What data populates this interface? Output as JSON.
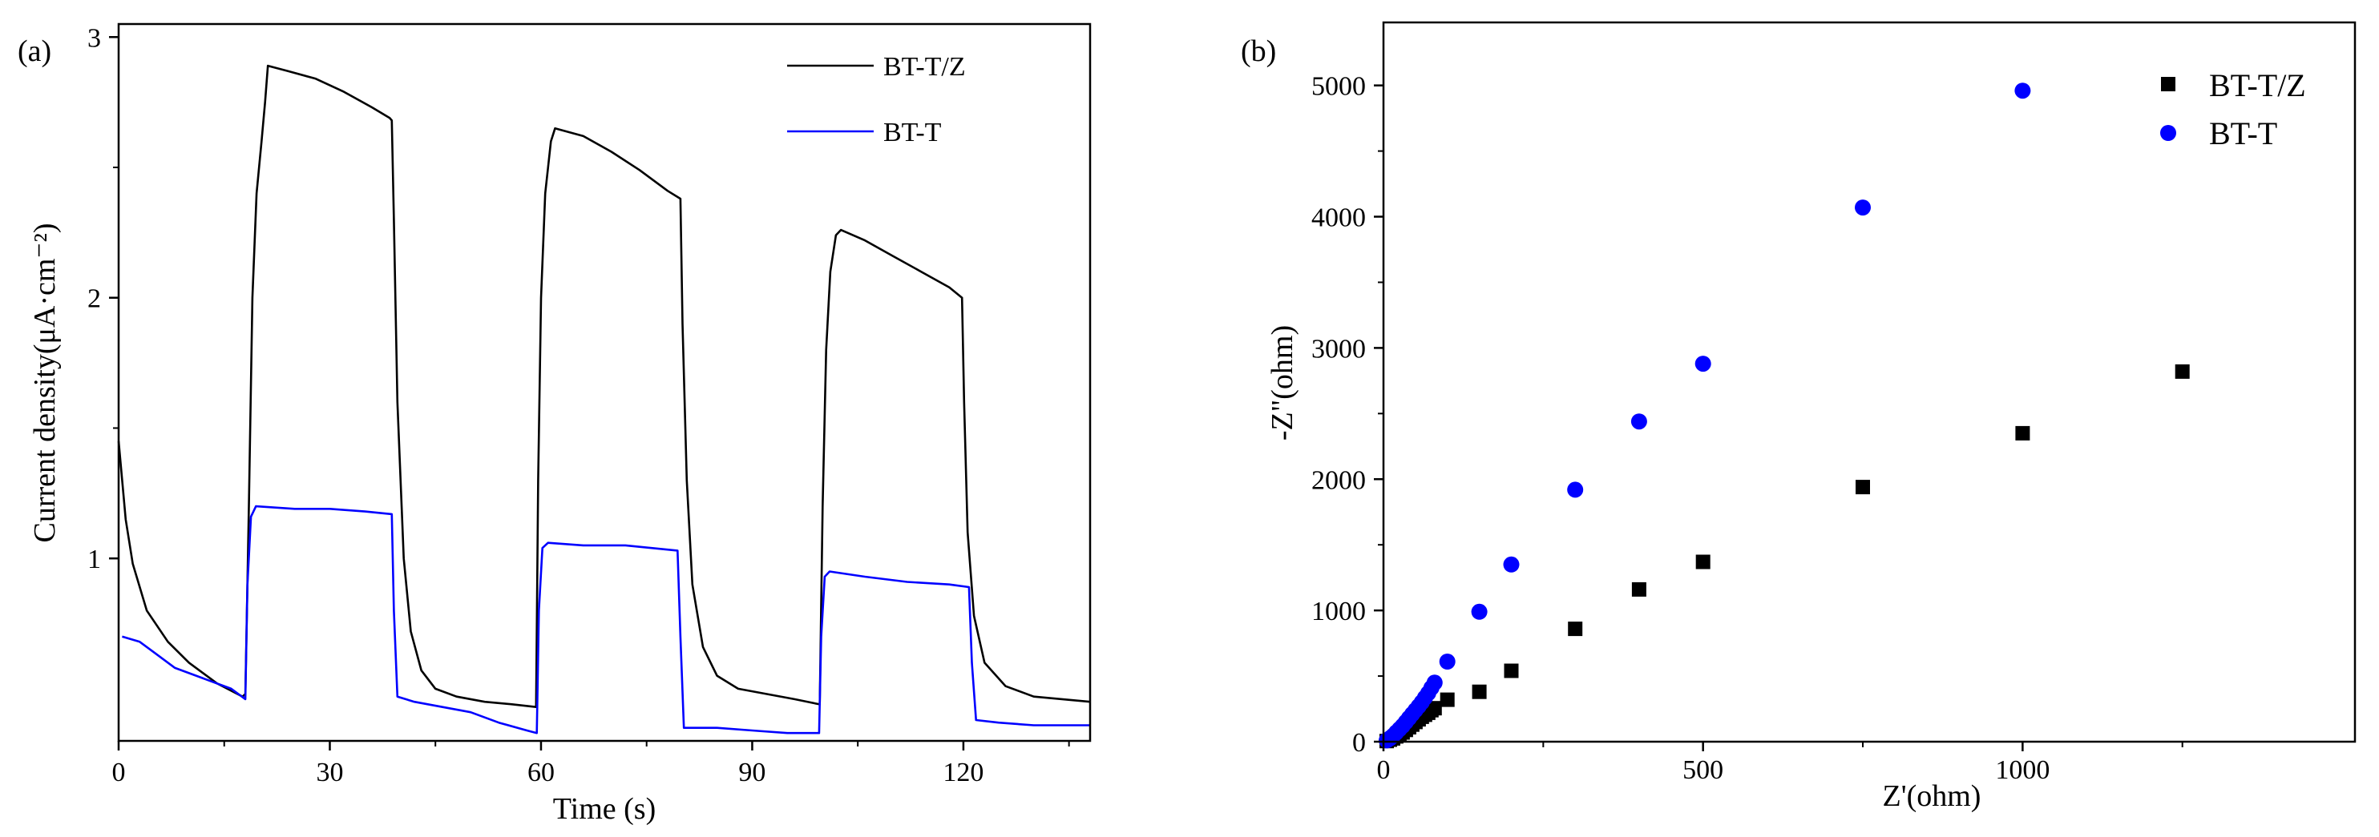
{
  "chart_data": [
    {
      "type": "line",
      "panel_label": "(a)",
      "title": "",
      "xlabel": "Time (s)",
      "ylabel": "Current density(μA·cm⁻²)",
      "xlim": [
        0,
        138
      ],
      "ylim": [
        0.3,
        3.05
      ],
      "xticks": [
        "0",
        "30",
        "60",
        "90",
        "120"
      ],
      "yticks": [
        "1",
        "2",
        "3"
      ],
      "x_tick_values": [
        0,
        30,
        60,
        90,
        120
      ],
      "y_tick_values": [
        1,
        2,
        3
      ],
      "grid": false,
      "legend_position": "top-right",
      "series": [
        {
          "name": "BT-T/Z",
          "color": "#000000",
          "points": [
            [
              0,
              1.45
            ],
            [
              1,
              1.15
            ],
            [
              2,
              0.98
            ],
            [
              4,
              0.8
            ],
            [
              7,
              0.68
            ],
            [
              10,
              0.6
            ],
            [
              14,
              0.52
            ],
            [
              17.6,
              0.47
            ],
            [
              18,
              0.48
            ],
            [
              18.5,
              1.2
            ],
            [
              19,
              2.0
            ],
            [
              19.6,
              2.4
            ],
            [
              20.3,
              2.6
            ],
            [
              20.8,
              2.75
            ],
            [
              21.2,
              2.89
            ],
            [
              24,
              2.87
            ],
            [
              28,
              2.84
            ],
            [
              32,
              2.79
            ],
            [
              36,
              2.73
            ],
            [
              38.5,
              2.69
            ],
            [
              38.8,
              2.68
            ],
            [
              39.1,
              2.3
            ],
            [
              39.6,
              1.6
            ],
            [
              40.5,
              1.0
            ],
            [
              41.5,
              0.72
            ],
            [
              43,
              0.57
            ],
            [
              45,
              0.5
            ],
            [
              48,
              0.47
            ],
            [
              52,
              0.45
            ],
            [
              56,
              0.44
            ],
            [
              59.3,
              0.43
            ],
            [
              59.6,
              1.3
            ],
            [
              60,
              2.0
            ],
            [
              60.6,
              2.4
            ],
            [
              61.4,
              2.6
            ],
            [
              62,
              2.65
            ],
            [
              66,
              2.62
            ],
            [
              70,
              2.56
            ],
            [
              74,
              2.49
            ],
            [
              78,
              2.41
            ],
            [
              79.8,
              2.38
            ],
            [
              80.1,
              1.9
            ],
            [
              80.7,
              1.3
            ],
            [
              81.5,
              0.9
            ],
            [
              83,
              0.66
            ],
            [
              85,
              0.55
            ],
            [
              88,
              0.5
            ],
            [
              92,
              0.48
            ],
            [
              96,
              0.46
            ],
            [
              99.6,
              0.44
            ],
            [
              100,
              1.2
            ],
            [
              100.5,
              1.8
            ],
            [
              101.1,
              2.1
            ],
            [
              101.9,
              2.24
            ],
            [
              102.6,
              2.26
            ],
            [
              106,
              2.22
            ],
            [
              110,
              2.16
            ],
            [
              114,
              2.1
            ],
            [
              118,
              2.04
            ],
            [
              119.8,
              2.0
            ],
            [
              120.1,
              1.6
            ],
            [
              120.6,
              1.1
            ],
            [
              121.5,
              0.78
            ],
            [
              123,
              0.6
            ],
            [
              126,
              0.51
            ],
            [
              130,
              0.47
            ],
            [
              134,
              0.46
            ],
            [
              138,
              0.45
            ]
          ]
        },
        {
          "name": "BT-T",
          "color": "#0000ff",
          "points": [
            [
              0.5,
              0.7
            ],
            [
              3,
              0.68
            ],
            [
              5,
              0.64
            ],
            [
              8,
              0.58
            ],
            [
              12,
              0.54
            ],
            [
              16,
              0.5
            ],
            [
              18,
              0.46
            ],
            [
              18.3,
              0.9
            ],
            [
              18.8,
              1.16
            ],
            [
              19.5,
              1.2
            ],
            [
              25,
              1.19
            ],
            [
              30,
              1.19
            ],
            [
              35,
              1.18
            ],
            [
              38.8,
              1.17
            ],
            [
              39.1,
              0.8
            ],
            [
              39.6,
              0.47
            ],
            [
              42,
              0.45
            ],
            [
              46,
              0.43
            ],
            [
              50,
              0.41
            ],
            [
              54,
              0.37
            ],
            [
              58,
              0.34
            ],
            [
              59.4,
              0.33
            ],
            [
              59.7,
              0.8
            ],
            [
              60.2,
              1.04
            ],
            [
              61,
              1.06
            ],
            [
              66,
              1.05
            ],
            [
              72,
              1.05
            ],
            [
              79.4,
              1.03
            ],
            [
              79.8,
              0.7
            ],
            [
              80.3,
              0.35
            ],
            [
              85,
              0.35
            ],
            [
              90,
              0.34
            ],
            [
              95,
              0.33
            ],
            [
              99.5,
              0.33
            ],
            [
              99.8,
              0.7
            ],
            [
              100.3,
              0.93
            ],
            [
              101,
              0.95
            ],
            [
              106,
              0.93
            ],
            [
              112,
              0.91
            ],
            [
              118,
              0.9
            ],
            [
              120.8,
              0.89
            ],
            [
              121.2,
              0.6
            ],
            [
              121.8,
              0.38
            ],
            [
              125,
              0.37
            ],
            [
              130,
              0.36
            ],
            [
              138,
              0.36
            ]
          ]
        }
      ],
      "legend": [
        "BT-T/Z",
        "BT-T"
      ]
    },
    {
      "type": "scatter",
      "panel_label": "(b)",
      "title": "",
      "xlabel": "Z'(ohm)",
      "ylabel": "-Z\"(ohm)",
      "xlim": [
        0,
        1520
      ],
      "ylim": [
        0,
        5480
      ],
      "xticks": [
        "0",
        "500",
        "1000"
      ],
      "yticks": [
        "0",
        "1000",
        "2000",
        "3000",
        "4000",
        "5000"
      ],
      "x_tick_values": [
        0,
        500,
        1000
      ],
      "y_tick_values": [
        0,
        1000,
        2000,
        3000,
        4000,
        5000
      ],
      "grid": false,
      "legend_position": "top-right",
      "series": [
        {
          "name": "BT-T/Z",
          "marker": "square",
          "color": "#000000",
          "points": [
            [
              5,
              5
            ],
            [
              10,
              15
            ],
            [
              15,
              25
            ],
            [
              20,
              40
            ],
            [
              25,
              55
            ],
            [
              30,
              70
            ],
            [
              35,
              90
            ],
            [
              40,
              110
            ],
            [
              45,
              130
            ],
            [
              50,
              150
            ],
            [
              55,
              170
            ],
            [
              60,
              190
            ],
            [
              65,
              205
            ],
            [
              70,
              220
            ],
            [
              75,
              240
            ],
            [
              80,
              255
            ],
            [
              100,
              320
            ],
            [
              150,
              380
            ],
            [
              200,
              540
            ],
            [
              300,
              860
            ],
            [
              400,
              1160
            ],
            [
              500,
              1370
            ],
            [
              750,
              1940
            ],
            [
              1000,
              2350
            ],
            [
              1250,
              2820
            ]
          ]
        },
        {
          "name": "BT-T",
          "marker": "circle",
          "color": "#0000ff",
          "points": [
            [
              5,
              10
            ],
            [
              10,
              25
            ],
            [
              15,
              45
            ],
            [
              20,
              70
            ],
            [
              25,
              95
            ],
            [
              30,
              120
            ],
            [
              35,
              150
            ],
            [
              40,
              180
            ],
            [
              45,
              210
            ],
            [
              50,
              240
            ],
            [
              55,
              270
            ],
            [
              60,
              300
            ],
            [
              65,
              335
            ],
            [
              70,
              370
            ],
            [
              75,
              410
            ],
            [
              80,
              450
            ],
            [
              100,
              610
            ],
            [
              150,
              990
            ],
            [
              200,
              1350
            ],
            [
              300,
              1920
            ],
            [
              400,
              2440
            ],
            [
              500,
              2880
            ],
            [
              750,
              4070
            ],
            [
              1000,
              4960
            ]
          ]
        }
      ],
      "legend": [
        "BT-T/Z",
        "BT-T"
      ]
    }
  ]
}
